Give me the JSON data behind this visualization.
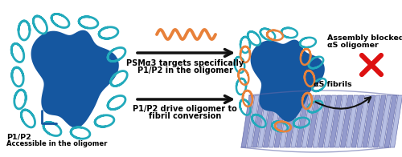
{
  "background_color": "#ffffff",
  "fig_width": 5.0,
  "fig_height": 1.96,
  "dpi": 100,
  "text_PSMa3_1": "PSMα3 targets specifically",
  "text_PSMa3_2": "P1/P2 in the oligomer",
  "text_P1P2_drive_1": "P1/P2 drive oligomer to",
  "text_P1P2_drive_2": "fibril conversion",
  "text_assembly_1": "Assembly blocked",
  "text_assembly_2": "αS oligomer",
  "text_fibrils": "αS fibrils",
  "text_P1P2": "P1/P2",
  "text_accessible": "Accessible in the oligomer",
  "oligomer_left_color": "#1557a0",
  "oligomer_right_color": "#1557a0",
  "curl_color": "#22aabb",
  "peptide_color": "#e8813a",
  "fibril_color_light": "#b0b8e0",
  "fibril_color_mid": "#8890c8",
  "fibril_color_dark": "#6068a8",
  "red_x_color": "#dd1111",
  "bracket_color": "#1557a0",
  "arrow_color": "#111111"
}
